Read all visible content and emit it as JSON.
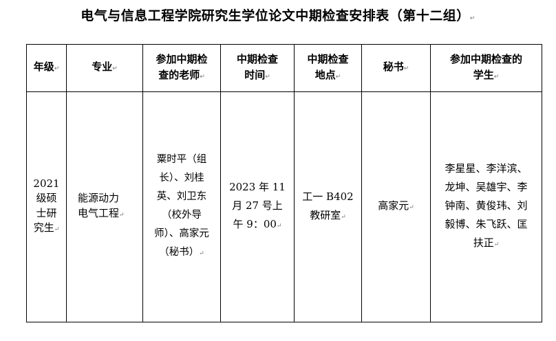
{
  "title": "电气与信息工程学院研究生学位论文中期检查安排表（第十二组）",
  "table": {
    "headers": [
      [
        "年级"
      ],
      [
        "专业"
      ],
      [
        "参加中期检",
        "查的老师"
      ],
      [
        "中期检查",
        "时间"
      ],
      [
        "中期检查",
        "地点"
      ],
      [
        "秘书"
      ],
      [
        "参加中期检查的",
        "学生"
      ]
    ],
    "row": [
      [
        "2021",
        "级硕",
        "士研",
        "究生"
      ],
      [
        "能源动力",
        "电气工程"
      ],
      [
        "粟时平（组",
        "长）、刘桂",
        "英、刘卫东",
        "（校外导",
        "师）、高家元",
        "（秘书）"
      ],
      [
        "2023 年 11",
        "月 27 号上",
        "午 9：00"
      ],
      [
        "工一 B402",
        "教研室"
      ],
      [
        "高家元"
      ],
      [
        "李星星、李洋滨、",
        "龙坤、吴雄宇、李",
        "钟南、黄俊玮、刘",
        "毅博、朱飞跃、匡",
        "扶正"
      ]
    ]
  }
}
